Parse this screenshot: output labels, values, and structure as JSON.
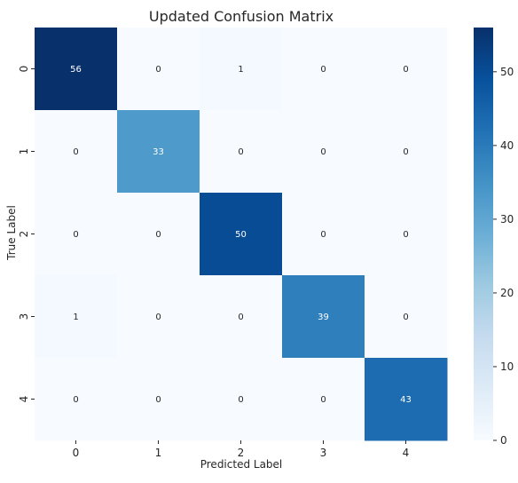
{
  "chart_data": {
    "type": "heatmap",
    "title": "Updated Confusion Matrix",
    "xlabel": "Predicted Label",
    "ylabel": "True Label",
    "x_categories": [
      "0",
      "1",
      "2",
      "3",
      "4"
    ],
    "y_categories": [
      "0",
      "1",
      "2",
      "3",
      "4"
    ],
    "matrix": [
      [
        56,
        0,
        1,
        0,
        0
      ],
      [
        0,
        33,
        0,
        0,
        0
      ],
      [
        0,
        0,
        50,
        0,
        0
      ],
      [
        1,
        0,
        0,
        39,
        0
      ],
      [
        0,
        0,
        0,
        0,
        43
      ]
    ],
    "colormap": "Blues",
    "colorbar": {
      "min": 0,
      "max": 56,
      "ticks": [
        0,
        10,
        20,
        30,
        40,
        50
      ]
    },
    "annotations": true,
    "grid": false
  }
}
